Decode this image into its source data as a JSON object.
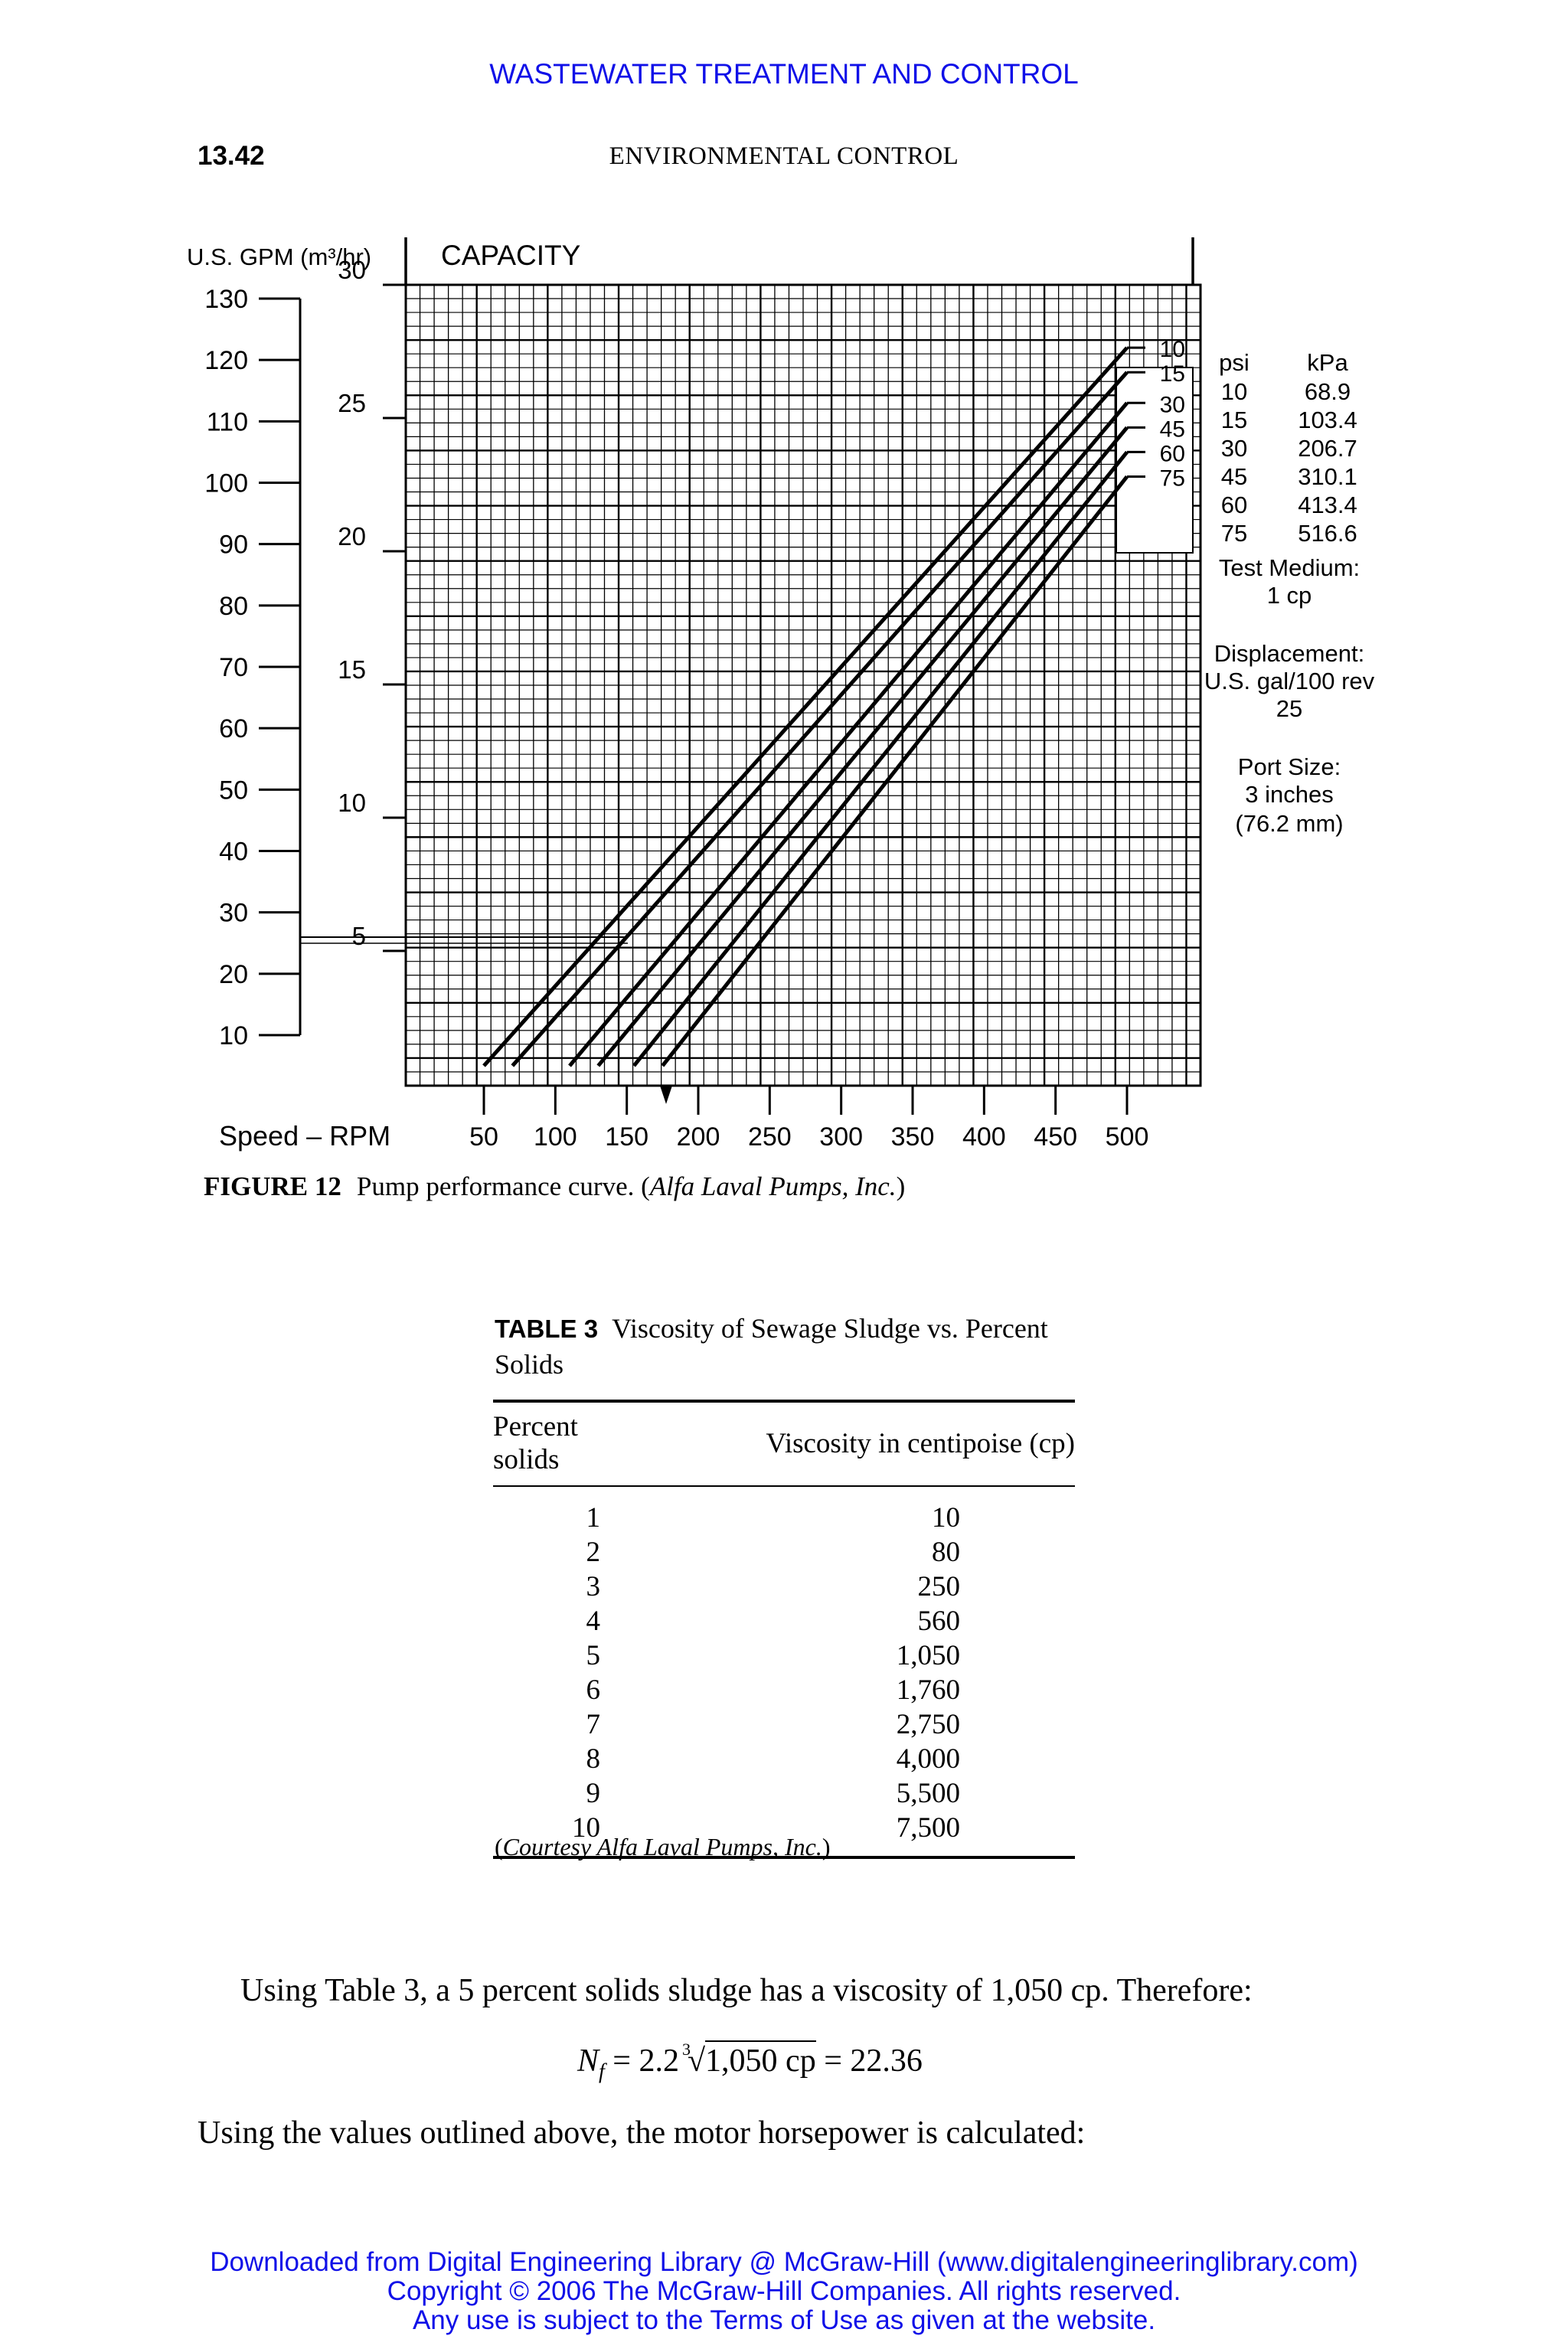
{
  "running_header": "WASTEWATER TREATMENT AND CONTROL",
  "page_number": "13.42",
  "section_title": "ENVIRONMENTAL CONTROL",
  "figure": {
    "gpm_axis_label": "U.S. GPM (m³/hr)",
    "capacity_label": "CAPACITY",
    "gpm_ticks": [
      "130",
      "120",
      "110",
      "100",
      "90",
      "80",
      "70",
      "60",
      "50",
      "40",
      "30",
      "20",
      "10"
    ],
    "m3hr_ticks": [
      "30",
      "25",
      "20",
      "15",
      "10",
      "5"
    ],
    "speed_label": "Speed – RPM",
    "speed_ticks": [
      "50",
      "100",
      "150",
      "200",
      "250",
      "300",
      "350",
      "400",
      "450",
      "500"
    ],
    "line_labels": [
      "10",
      "15",
      "30",
      "45",
      "60",
      "75"
    ],
    "pressure_header_psi": "psi",
    "pressure_header_kpa": "kPa",
    "pressure_rows": [
      {
        "psi": "10",
        "kpa": "68.9"
      },
      {
        "psi": "15",
        "kpa": "103.4"
      },
      {
        "psi": "30",
        "kpa": "206.7"
      },
      {
        "psi": "45",
        "kpa": "310.1"
      },
      {
        "psi": "60",
        "kpa": "413.4"
      },
      {
        "psi": "75",
        "kpa": "516.6"
      }
    ],
    "test_medium_label": "Test Medium:",
    "test_medium_value": "1 cp",
    "displacement_label": "Displacement:",
    "displacement_unit": "U.S. gal/100 rev",
    "displacement_value": "25",
    "port_size_label": "Port Size:",
    "port_size_value": "3 inches",
    "port_size_metric": "(76.2 mm)",
    "caption_number": "FIGURE 12",
    "caption_text": "Pump performance curve. (",
    "caption_source": "Alfa Laval Pumps, Inc.",
    "caption_close": ")"
  },
  "chart_data": {
    "type": "line",
    "title": "CAPACITY",
    "xlabel": "Speed – RPM",
    "ylabel": "U.S. GPM (m³/hr)",
    "xlim": [
      50,
      500
    ],
    "ylim": [
      0,
      130
    ],
    "series": [
      {
        "name": "10",
        "x": [
          50,
          500
        ],
        "y": [
          5,
          122
        ]
      },
      {
        "name": "15",
        "x": [
          70,
          500
        ],
        "y": [
          5,
          118
        ]
      },
      {
        "name": "30",
        "x": [
          110,
          500
        ],
        "y": [
          5,
          113
        ]
      },
      {
        "name": "45",
        "x": [
          130,
          500
        ],
        "y": [
          5,
          109
        ]
      },
      {
        "name": "60",
        "x": [
          155,
          500
        ],
        "y": [
          5,
          105
        ]
      },
      {
        "name": "75",
        "x": [
          175,
          500
        ],
        "y": [
          5,
          101
        ]
      }
    ],
    "grid": true
  },
  "table": {
    "number": "TABLE 3",
    "title": "Viscosity of Sewage Sludge vs. Percent Solids",
    "col1_header": "Percent solids",
    "col2_header": "Viscosity in centipoise (cp)",
    "rows": [
      {
        "solids": "1",
        "viscosity": "10"
      },
      {
        "solids": "2",
        "viscosity": "80"
      },
      {
        "solids": "3",
        "viscosity": "250"
      },
      {
        "solids": "4",
        "viscosity": "560"
      },
      {
        "solids": "5",
        "viscosity": "1,050"
      },
      {
        "solids": "6",
        "viscosity": "1,760"
      },
      {
        "solids": "7",
        "viscosity": "2,750"
      },
      {
        "solids": "8",
        "viscosity": "4,000"
      },
      {
        "solids": "9",
        "viscosity": "5,500"
      },
      {
        "solids": "10",
        "viscosity": "7,500"
      }
    ],
    "note_open": "(",
    "note_text": "Courtesy Alfa Laval Pumps, Inc.",
    "note_close": ")"
  },
  "body": {
    "paragraph_1": "Using Table 3, a 5 percent solids sludge has a viscosity of 1,050 cp. Therefore:",
    "eq_lhs": "N",
    "eq_sub": "f",
    "eq_eq": " = 2.2",
    "eq_root_index": "3",
    "eq_radicand": "1,050 cp",
    "eq_result": " = 22.36",
    "paragraph_2": "Using the values outlined above, the motor horsepower is calculated:"
  },
  "footer": {
    "line_1": "Downloaded from Digital Engineering Library @ McGraw-Hill (www.digitalengineeringlibrary.com)",
    "line_2": "Copyright © 2006 The McGraw-Hill Companies. All rights reserved.",
    "line_3": "Any use is subject to the Terms of Use as given at the website."
  }
}
